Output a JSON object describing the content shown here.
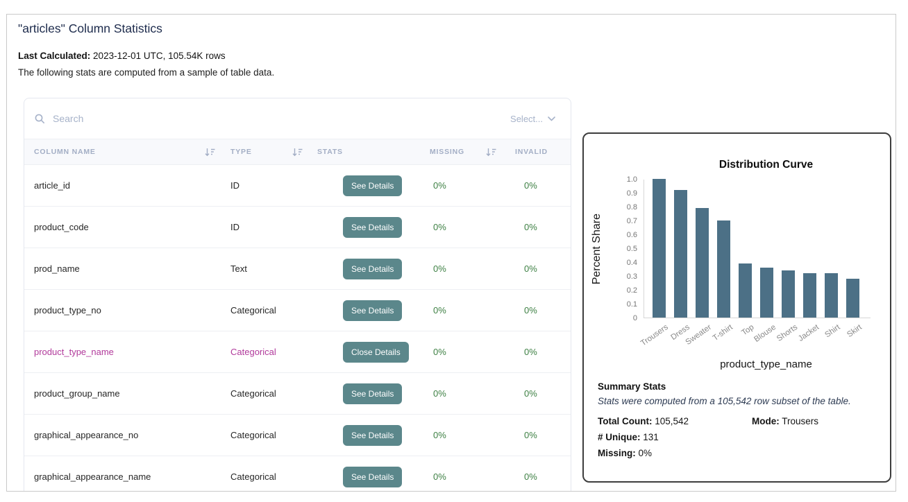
{
  "page": {
    "title": "\"articles\" Column Statistics",
    "last_calculated_label": "Last Calculated:",
    "last_calculated_value": "2023-12-01 UTC, 105.54K rows",
    "subtitle": "The following stats are computed from a sample of table data."
  },
  "table": {
    "search_placeholder": "Search",
    "select_label": "Select...",
    "headers": [
      "COLUMN NAME",
      "TYPE",
      "STATS",
      "MISSING",
      "INVALID"
    ],
    "rows": [
      {
        "name": "article_id",
        "type": "ID",
        "stats": "See Details",
        "missing": "0%",
        "invalid": "0%",
        "active": false
      },
      {
        "name": "product_code",
        "type": "ID",
        "stats": "See Details",
        "missing": "0%",
        "invalid": "0%",
        "active": false
      },
      {
        "name": "prod_name",
        "type": "Text",
        "stats": "See Details",
        "missing": "0%",
        "invalid": "0%",
        "active": false
      },
      {
        "name": "product_type_no",
        "type": "Categorical",
        "stats": "See Details",
        "missing": "0%",
        "invalid": "0%",
        "active": false
      },
      {
        "name": "product_type_name",
        "type": "Categorical",
        "stats": "Close Details",
        "missing": "0%",
        "invalid": "0%",
        "active": true
      },
      {
        "name": "product_group_name",
        "type": "Categorical",
        "stats": "See Details",
        "missing": "0%",
        "invalid": "0%",
        "active": false
      },
      {
        "name": "graphical_appearance_no",
        "type": "Categorical",
        "stats": "See Details",
        "missing": "0%",
        "invalid": "0%",
        "active": false
      },
      {
        "name": "graphical_appearance_name",
        "type": "Categorical",
        "stats": "See Details",
        "missing": "0%",
        "invalid": "0%",
        "active": false
      }
    ]
  },
  "panel": {
    "summary_title": "Summary Stats",
    "summary_note": "Stats were computed from a 105,542 row subset of the table.",
    "stats": [
      {
        "label": "Total Count:",
        "value": "105,542"
      },
      {
        "label": "Mode:",
        "value": "Trousers"
      },
      {
        "label": "# Unique:",
        "value": "131"
      },
      {
        "label": "Missing:",
        "value": "0%"
      }
    ]
  },
  "chart_data": {
    "type": "bar",
    "title": "Distribution Curve",
    "xlabel": "product_type_name",
    "ylabel": "Percent Share",
    "categories": [
      "Trousers",
      "Dress",
      "Sweater",
      "T-shirt",
      "Top",
      "Blouse",
      "Shorts",
      "Jacket",
      "Shirt",
      "Skirt"
    ],
    "values": [
      1.0,
      0.92,
      0.79,
      0.7,
      0.39,
      0.36,
      0.34,
      0.32,
      0.32,
      0.28
    ],
    "ylim": [
      0,
      1.0
    ],
    "yticks": [
      0,
      0.1,
      0.2,
      0.3,
      0.4,
      0.5,
      0.6,
      0.7,
      0.8,
      0.9,
      1.0
    ],
    "bar_color": "#4c7086",
    "grid": false,
    "legend": false
  },
  "colors": {
    "accent_teal": "#5b878b",
    "ok_green": "#3e8044",
    "active_pink": "#b13a9b",
    "bar_blue": "#4c7086",
    "muted_bluegray": "#a6b2c9",
    "title_navy": "#1d2b4c"
  }
}
